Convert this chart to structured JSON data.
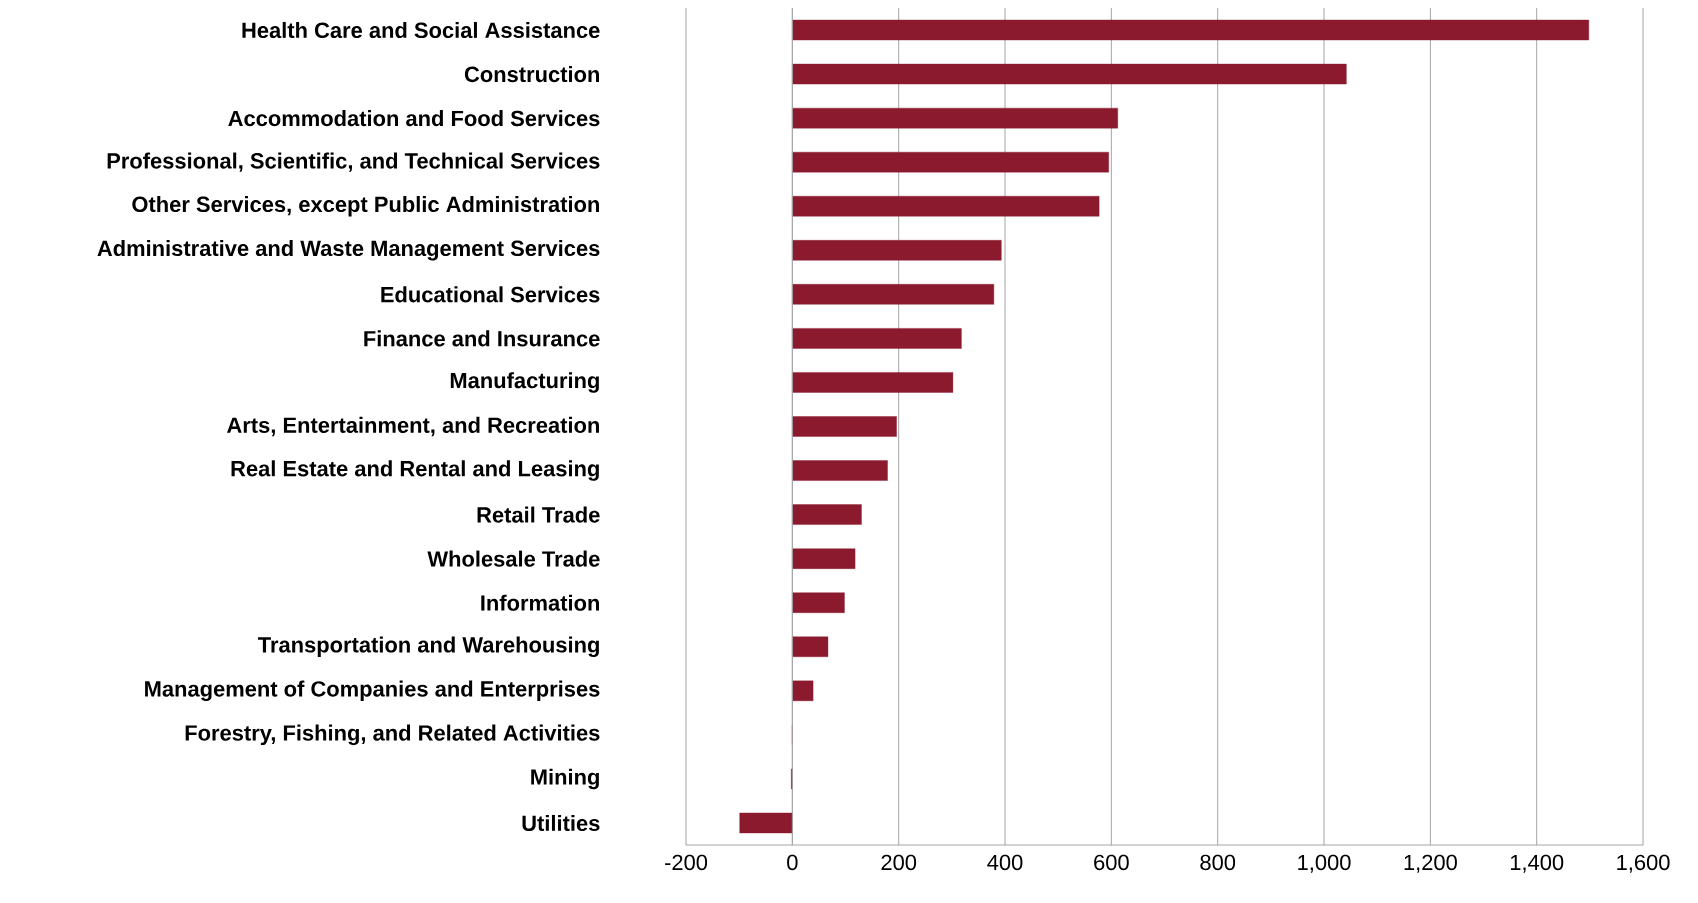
{
  "chart_data": {
    "type": "bar",
    "orientation": "horizontal",
    "categories": [
      "Health Care and Social Assistance",
      "Construction",
      "Accommodation and Food Services",
      "Professional, Scientific, and Technical Services",
      "Other Services, except Public Administration",
      "Administrative and Waste Management Services",
      "Educational Services",
      "Finance and Insurance",
      "Manufacturing",
      "Arts, Entertainment, and Recreation",
      "Real Estate and Rental and Leasing",
      "Retail Trade",
      "Wholesale Trade",
      "Information",
      "Transportation and Warehousing",
      "Management of Companies and Enterprises",
      "Forestry, Fishing, and Related Activities",
      "Mining",
      "Utilities"
    ],
    "values": [
      1498,
      1042,
      612,
      595,
      577,
      393,
      379,
      318,
      302,
      196,
      179,
      130,
      118,
      98,
      67,
      39,
      0,
      -2,
      -99
    ],
    "color": "#8b1a2e",
    "xlim": [
      -200,
      1600
    ],
    "xticks": [
      -200,
      0,
      200,
      400,
      600,
      800,
      {
        "value": 1000,
        "label": "1,000"
      },
      {
        "value": 1200,
        "label": "1,200"
      },
      {
        "value": 1400,
        "label": "1,400"
      },
      {
        "value": 1600,
        "label": "1,600"
      }
    ],
    "grid": "x"
  }
}
